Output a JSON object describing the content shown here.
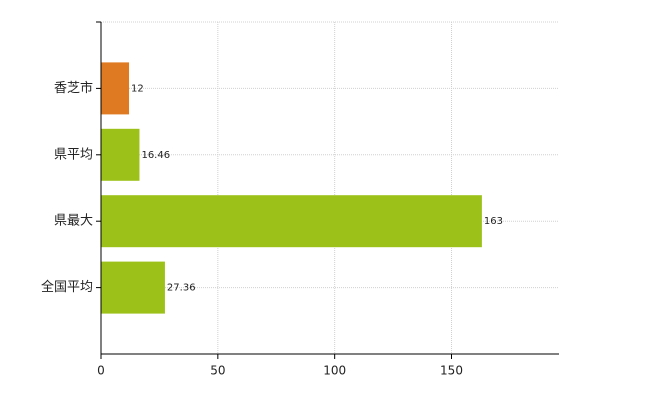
{
  "chart_data": {
    "type": "barh",
    "categories": [
      "香芝市",
      "県平均",
      "県最大",
      "全国平均"
    ],
    "values": [
      12,
      16.46,
      163,
      27.36
    ],
    "colors": [
      "#e07a22",
      "#9cc21a",
      "#9cc21a",
      "#9cc21a"
    ],
    "xlim": [
      0,
      196
    ],
    "xticks": [
      0,
      50,
      100,
      150
    ],
    "grid": true
  }
}
